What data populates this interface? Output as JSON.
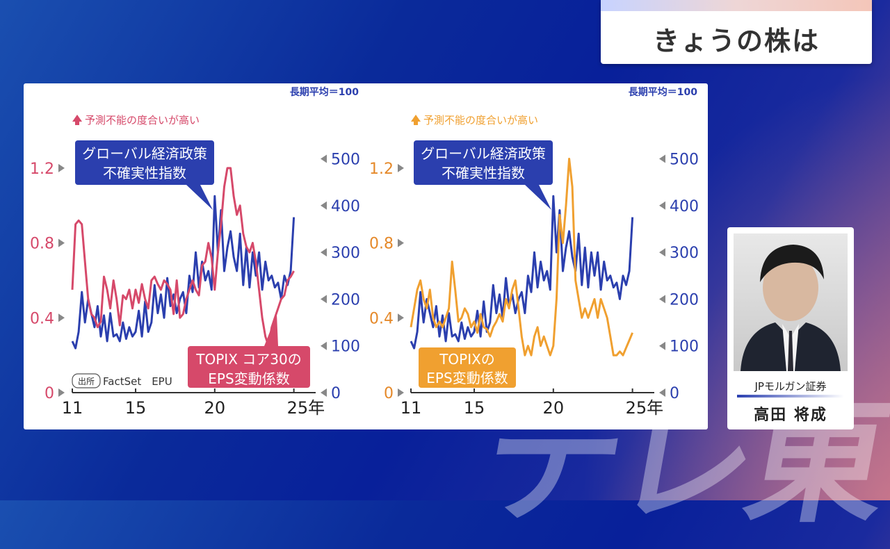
{
  "header": {
    "title": "きょうの株は"
  },
  "person": {
    "company": "JPモルガン証券",
    "name": "高田 将成"
  },
  "colors": {
    "epu": "#2b3fae",
    "topix_core30": "#d6496a",
    "topix": "#f0a030",
    "axis_left_a": "#d6496a",
    "axis_left_b": "#e5892a",
    "axis_right": "#2b3fae"
  },
  "chart_data": [
    {
      "type": "line",
      "title": "",
      "up_label": "予測不能の度合いが高い",
      "right_axis_note": "長期平均＝100",
      "source_badge": "出所",
      "source_text": "FactSet　EPU",
      "x_ticks": [
        "11",
        "15",
        "20",
        "25年"
      ],
      "x_range": [
        2011,
        2025.5
      ],
      "y_left": {
        "range": [
          0,
          1.3
        ],
        "ticks": [
          "0",
          "0.4",
          "0.8",
          "1.2"
        ],
        "tick_values": [
          0,
          0.4,
          0.8,
          1.2
        ]
      },
      "y_right": {
        "range": [
          0,
          520
        ],
        "ticks": [
          "0",
          "100",
          "200",
          "300",
          "400",
          "500"
        ],
        "tick_values": [
          0,
          100,
          200,
          300,
          400,
          500
        ]
      },
      "callouts": {
        "epu": "グローバル経済政策\n不確実性指数",
        "eps": "TOPIX コア30の\nEPS変動係数"
      },
      "series": [
        {
          "name": "グローバル経済政策不確実性指数",
          "axis": "right",
          "x": [
            2011.0,
            2011.2,
            2011.4,
            2011.6,
            2011.8,
            2012.0,
            2012.2,
            2012.4,
            2012.6,
            2012.8,
            2013.0,
            2013.2,
            2013.4,
            2013.6,
            2013.8,
            2014.0,
            2014.2,
            2014.4,
            2014.6,
            2014.8,
            2015.0,
            2015.2,
            2015.4,
            2015.6,
            2015.8,
            2016.0,
            2016.2,
            2016.4,
            2016.6,
            2016.8,
            2017.0,
            2017.2,
            2017.4,
            2017.6,
            2017.8,
            2018.0,
            2018.2,
            2018.4,
            2018.6,
            2018.8,
            2019.0,
            2019.2,
            2019.4,
            2019.6,
            2019.8,
            2020.0,
            2020.2,
            2020.4,
            2020.6,
            2020.8,
            2021.0,
            2021.2,
            2021.4,
            2021.6,
            2021.8,
            2022.0,
            2022.2,
            2022.4,
            2022.6,
            2022.8,
            2023.0,
            2023.2,
            2023.4,
            2023.6,
            2023.8,
            2024.0,
            2024.2,
            2024.4,
            2024.6,
            2024.8,
            2025.0
          ],
          "values": [
            110,
            95,
            130,
            215,
            150,
            200,
            170,
            140,
            185,
            120,
            165,
            110,
            170,
            120,
            125,
            110,
            150,
            115,
            140,
            120,
            130,
            175,
            120,
            195,
            130,
            150,
            230,
            170,
            210,
            160,
            245,
            185,
            210,
            170,
            200,
            215,
            170,
            250,
            215,
            300,
            225,
            280,
            240,
            260,
            220,
            420,
            300,
            390,
            260,
            310,
            345,
            290,
            260,
            340,
            230,
            310,
            225,
            300,
            250,
            300,
            220,
            280,
            240,
            250,
            225,
            235,
            200,
            250,
            230,
            260,
            375
          ]
        },
        {
          "name": "TOPIX コア30のEPS変動係数",
          "axis": "left",
          "x": [
            2011.0,
            2011.2,
            2011.4,
            2011.6,
            2011.8,
            2012.0,
            2012.2,
            2012.4,
            2012.6,
            2012.8,
            2013.0,
            2013.2,
            2013.4,
            2013.6,
            2013.8,
            2014.0,
            2014.2,
            2014.4,
            2014.6,
            2014.8,
            2015.0,
            2015.2,
            2015.4,
            2015.6,
            2015.8,
            2016.0,
            2016.2,
            2016.4,
            2016.6,
            2016.8,
            2017.0,
            2017.2,
            2017.4,
            2017.6,
            2017.8,
            2018.0,
            2018.2,
            2018.4,
            2018.6,
            2018.8,
            2019.0,
            2019.2,
            2019.4,
            2019.6,
            2019.8,
            2020.0,
            2020.2,
            2020.4,
            2020.6,
            2020.8,
            2021.0,
            2021.2,
            2021.4,
            2021.6,
            2021.8,
            2022.0,
            2022.2,
            2022.4,
            2022.6,
            2022.8,
            2023.0,
            2023.2,
            2023.4,
            2023.6,
            2023.8,
            2024.0,
            2024.2,
            2024.4,
            2024.6,
            2024.8,
            2025.0
          ],
          "values": [
            0.55,
            0.9,
            0.92,
            0.9,
            0.7,
            0.5,
            0.42,
            0.4,
            0.35,
            0.38,
            0.62,
            0.55,
            0.45,
            0.6,
            0.5,
            0.36,
            0.52,
            0.5,
            0.55,
            0.45,
            0.55,
            0.48,
            0.58,
            0.5,
            0.45,
            0.6,
            0.62,
            0.58,
            0.55,
            0.6,
            0.58,
            0.55,
            0.42,
            0.6,
            0.4,
            0.42,
            0.5,
            0.55,
            0.6,
            0.55,
            0.52,
            0.68,
            0.7,
            0.8,
            0.72,
            0.55,
            0.75,
            0.9,
            1.1,
            1.2,
            1.2,
            1.05,
            0.95,
            1.0,
            0.85,
            0.78,
            0.75,
            0.8,
            0.7,
            0.55,
            0.4,
            0.3,
            0.25,
            0.35,
            0.4,
            0.45,
            0.5,
            0.52,
            0.6,
            0.62,
            0.65
          ]
        }
      ]
    },
    {
      "type": "line",
      "title": "",
      "up_label": "予測不能の度合いが高い",
      "right_axis_note": "長期平均＝100",
      "x_ticks": [
        "11",
        "15",
        "20",
        "25年"
      ],
      "x_range": [
        2011,
        2025.5
      ],
      "y_left": {
        "range": [
          0,
          1.3
        ],
        "ticks": [
          "0",
          "0.4",
          "0.8",
          "1.2"
        ],
        "tick_values": [
          0,
          0.4,
          0.8,
          1.2
        ]
      },
      "y_right": {
        "range": [
          0,
          520
        ],
        "ticks": [
          "0",
          "100",
          "200",
          "300",
          "400",
          "500"
        ],
        "tick_values": [
          0,
          100,
          200,
          300,
          400,
          500
        ]
      },
      "callouts": {
        "epu": "グローバル経済政策\n不確実性指数",
        "eps": "TOPIXの\nEPS変動係数"
      },
      "series": [
        {
          "name": "グローバル経済政策不確実性指数",
          "axis": "right",
          "x": [
            2011.0,
            2011.2,
            2011.4,
            2011.6,
            2011.8,
            2012.0,
            2012.2,
            2012.4,
            2012.6,
            2012.8,
            2013.0,
            2013.2,
            2013.4,
            2013.6,
            2013.8,
            2014.0,
            2014.2,
            2014.4,
            2014.6,
            2014.8,
            2015.0,
            2015.2,
            2015.4,
            2015.6,
            2015.8,
            2016.0,
            2016.2,
            2016.4,
            2016.6,
            2016.8,
            2017.0,
            2017.2,
            2017.4,
            2017.6,
            2017.8,
            2018.0,
            2018.2,
            2018.4,
            2018.6,
            2018.8,
            2019.0,
            2019.2,
            2019.4,
            2019.6,
            2019.8,
            2020.0,
            2020.2,
            2020.4,
            2020.6,
            2020.8,
            2021.0,
            2021.2,
            2021.4,
            2021.6,
            2021.8,
            2022.0,
            2022.2,
            2022.4,
            2022.6,
            2022.8,
            2023.0,
            2023.2,
            2023.4,
            2023.6,
            2023.8,
            2024.0,
            2024.2,
            2024.4,
            2024.6,
            2024.8,
            2025.0
          ],
          "values": [
            110,
            95,
            130,
            215,
            150,
            200,
            170,
            140,
            185,
            120,
            165,
            110,
            170,
            120,
            125,
            110,
            150,
            115,
            140,
            120,
            130,
            175,
            120,
            195,
            130,
            150,
            230,
            170,
            210,
            160,
            245,
            185,
            210,
            170,
            200,
            215,
            170,
            250,
            215,
            300,
            225,
            280,
            240,
            260,
            220,
            420,
            300,
            390,
            260,
            310,
            345,
            290,
            260,
            340,
            230,
            310,
            225,
            300,
            250,
            300,
            220,
            280,
            240,
            250,
            225,
            235,
            200,
            250,
            230,
            260,
            375
          ]
        },
        {
          "name": "TOPIXのEPS変動係数",
          "axis": "left",
          "x": [
            2011.0,
            2011.2,
            2011.4,
            2011.6,
            2011.8,
            2012.0,
            2012.2,
            2012.4,
            2012.6,
            2012.8,
            2013.0,
            2013.2,
            2013.4,
            2013.6,
            2013.8,
            2014.0,
            2014.2,
            2014.4,
            2014.6,
            2014.8,
            2015.0,
            2015.2,
            2015.4,
            2015.6,
            2015.8,
            2016.0,
            2016.2,
            2016.4,
            2016.6,
            2016.8,
            2017.0,
            2017.2,
            2017.4,
            2017.6,
            2017.8,
            2018.0,
            2018.2,
            2018.4,
            2018.6,
            2018.8,
            2019.0,
            2019.2,
            2019.4,
            2019.6,
            2019.8,
            2020.0,
            2020.2,
            2020.4,
            2020.6,
            2020.8,
            2021.0,
            2021.2,
            2021.4,
            2021.6,
            2021.8,
            2022.0,
            2022.2,
            2022.4,
            2022.6,
            2022.8,
            2023.0,
            2023.2,
            2023.4,
            2023.6,
            2023.8,
            2024.0,
            2024.2,
            2024.4,
            2024.6,
            2024.8,
            2025.0
          ],
          "values": [
            0.35,
            0.45,
            0.55,
            0.6,
            0.5,
            0.45,
            0.55,
            0.4,
            0.35,
            0.38,
            0.35,
            0.4,
            0.45,
            0.7,
            0.55,
            0.38,
            0.4,
            0.45,
            0.42,
            0.35,
            0.38,
            0.32,
            0.42,
            0.35,
            0.34,
            0.3,
            0.35,
            0.38,
            0.42,
            0.38,
            0.5,
            0.45,
            0.55,
            0.6,
            0.45,
            0.3,
            0.2,
            0.25,
            0.2,
            0.3,
            0.35,
            0.25,
            0.3,
            0.25,
            0.2,
            0.25,
            0.5,
            0.95,
            0.8,
            1.0,
            1.25,
            1.1,
            0.6,
            0.5,
            0.4,
            0.45,
            0.4,
            0.45,
            0.5,
            0.4,
            0.5,
            0.45,
            0.4,
            0.3,
            0.2,
            0.2,
            0.22,
            0.2,
            0.24,
            0.28,
            0.32
          ]
        }
      ]
    }
  ]
}
